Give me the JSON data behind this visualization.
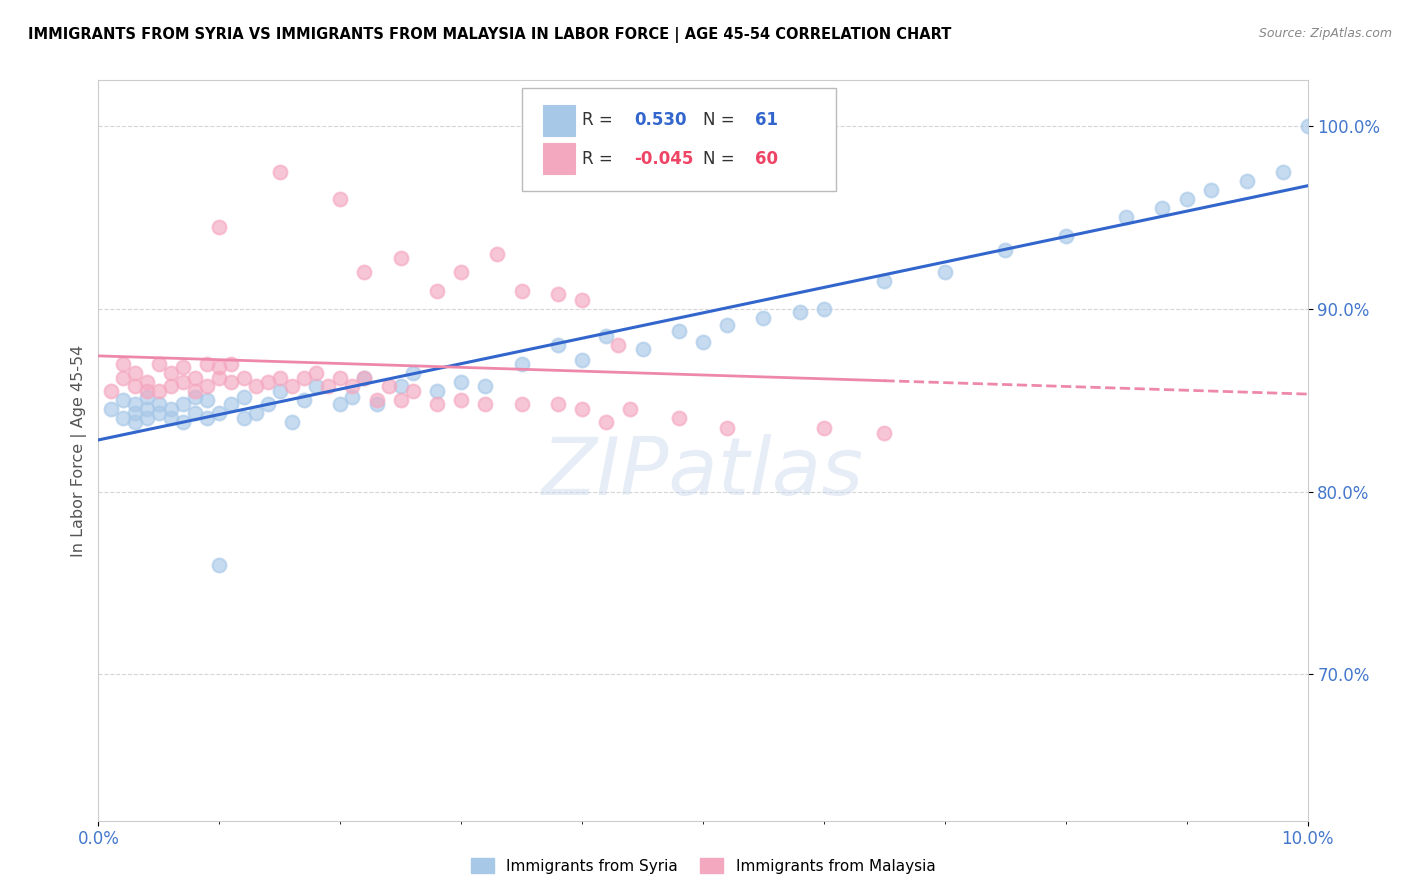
{
  "title": "IMMIGRANTS FROM SYRIA VS IMMIGRANTS FROM MALAYSIA IN LABOR FORCE | AGE 45-54 CORRELATION CHART",
  "source": "Source: ZipAtlas.com",
  "ylabel": "In Labor Force | Age 45-54",
  "xlim": [
    0.0,
    0.1
  ],
  "ylim": [
    0.62,
    1.025
  ],
  "ytick_labels": [
    "70.0%",
    "80.0%",
    "90.0%",
    "100.0%"
  ],
  "ytick_values": [
    0.7,
    0.8,
    0.9,
    1.0
  ],
  "xtick_labels": [
    "0.0%",
    "10.0%"
  ],
  "xtick_values": [
    0.0,
    0.1
  ],
  "legend_r_syria": "0.530",
  "legend_n_syria": "61",
  "legend_r_malaysia": "-0.045",
  "legend_n_malaysia": "60",
  "syria_color": "#a8c8e8",
  "malaysia_color": "#f4a8c0",
  "syria_line_color": "#3366cc",
  "malaysia_line_color": "#ee88aa",
  "watermark": "ZIPatlas",
  "syria_x": [
    0.001,
    0.002,
    0.002,
    0.003,
    0.003,
    0.003,
    0.004,
    0.004,
    0.004,
    0.005,
    0.005,
    0.006,
    0.006,
    0.007,
    0.007,
    0.008,
    0.008,
    0.009,
    0.009,
    0.01,
    0.01,
    0.011,
    0.012,
    0.012,
    0.013,
    0.014,
    0.015,
    0.016,
    0.017,
    0.018,
    0.02,
    0.021,
    0.022,
    0.023,
    0.025,
    0.026,
    0.028,
    0.03,
    0.032,
    0.035,
    0.038,
    0.04,
    0.042,
    0.045,
    0.048,
    0.05,
    0.052,
    0.055,
    0.058,
    0.06,
    0.065,
    0.07,
    0.075,
    0.08,
    0.085,
    0.088,
    0.09,
    0.092,
    0.095,
    0.098,
    0.1
  ],
  "syria_y": [
    0.845,
    0.85,
    0.84,
    0.843,
    0.848,
    0.838,
    0.845,
    0.84,
    0.852,
    0.843,
    0.848,
    0.84,
    0.845,
    0.848,
    0.838,
    0.843,
    0.852,
    0.84,
    0.85,
    0.843,
    0.76,
    0.848,
    0.84,
    0.852,
    0.843,
    0.848,
    0.855,
    0.838,
    0.85,
    0.858,
    0.848,
    0.852,
    0.862,
    0.848,
    0.858,
    0.865,
    0.855,
    0.86,
    0.858,
    0.87,
    0.88,
    0.872,
    0.885,
    0.878,
    0.888,
    0.882,
    0.891,
    0.895,
    0.898,
    0.9,
    0.915,
    0.92,
    0.932,
    0.94,
    0.95,
    0.955,
    0.96,
    0.965,
    0.97,
    0.975,
    1.0
  ],
  "malaysia_x": [
    0.001,
    0.002,
    0.002,
    0.003,
    0.003,
    0.004,
    0.004,
    0.005,
    0.005,
    0.006,
    0.006,
    0.007,
    0.007,
    0.008,
    0.008,
    0.009,
    0.009,
    0.01,
    0.01,
    0.011,
    0.011,
    0.012,
    0.013,
    0.014,
    0.015,
    0.016,
    0.017,
    0.018,
    0.019,
    0.02,
    0.021,
    0.022,
    0.023,
    0.024,
    0.025,
    0.026,
    0.028,
    0.03,
    0.032,
    0.035,
    0.038,
    0.04,
    0.042,
    0.044,
    0.048,
    0.052,
    0.06,
    0.065,
    0.025,
    0.03,
    0.035,
    0.04,
    0.02,
    0.015,
    0.01,
    0.022,
    0.028,
    0.033,
    0.038,
    0.043
  ],
  "malaysia_y": [
    0.855,
    0.862,
    0.87,
    0.858,
    0.865,
    0.855,
    0.86,
    0.855,
    0.87,
    0.858,
    0.865,
    0.86,
    0.868,
    0.855,
    0.862,
    0.87,
    0.858,
    0.862,
    0.868,
    0.86,
    0.87,
    0.862,
    0.858,
    0.86,
    0.862,
    0.858,
    0.862,
    0.865,
    0.858,
    0.862,
    0.858,
    0.862,
    0.85,
    0.858,
    0.85,
    0.855,
    0.848,
    0.85,
    0.848,
    0.848,
    0.848,
    0.845,
    0.838,
    0.845,
    0.84,
    0.835,
    0.835,
    0.832,
    0.928,
    0.92,
    0.91,
    0.905,
    0.96,
    0.975,
    0.945,
    0.92,
    0.91,
    0.93,
    0.908,
    0.88
  ]
}
